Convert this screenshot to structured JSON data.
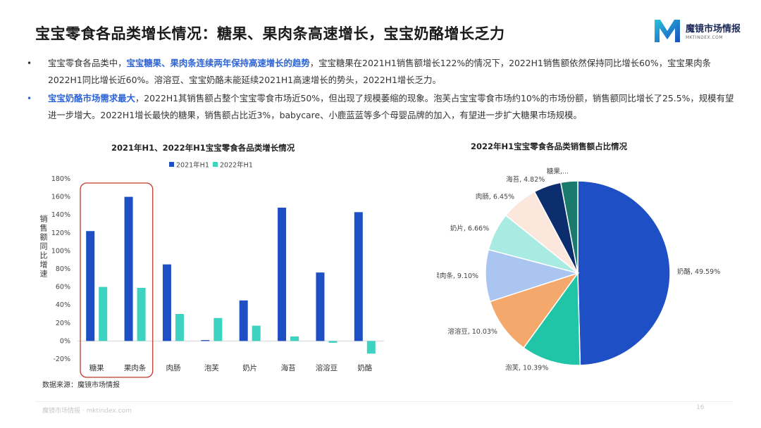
{
  "page": {
    "title": "宝宝零食各品类增长情况：糖果、果肉条高速增长，宝宝奶酪增长乏力",
    "logo": {
      "brand": "魔镜市场情报",
      "domain": "MKTINDEX.COM"
    },
    "bullets": [
      {
        "pre": "宝宝零食各品类中，",
        "highlight": "宝宝糖果、果肉条连续两年保持高速增长的趋势",
        "post": "，宝宝糖果在2021H1销售额增长122%的情况下，2022H1销售额依然保持同比增长60%，宝宝果肉条2022H1同比增长近60%。溶溶豆、宝宝奶酪未能延续2021H1高速增长的势头，2022H1增长乏力。"
      },
      {
        "pre": "",
        "highlight": "宝宝奶酪市场需求最大",
        "post": "，2022H1其销售额占整个宝宝零食市场近50%，但出现了规模萎缩的现象。泡芙占宝宝零食市场约10%的市场份额，销售额同比增长了25.5%，规模有望进一步增大。2022H1增长最快的糖果，销售额占比近3%，babycare、小鹿蓝蓝等多个母婴品牌的加入，有望进一步扩大糖果市场规模。"
      }
    ],
    "source": "数据来源：魔镜市场情报",
    "footer": "魔镜市场情报 · mktindex.com",
    "page_number": "16"
  },
  "chart_data": [
    {
      "type": "bar",
      "title": "2021年H1、2022年H1宝宝零食各品类增长情况",
      "ylabel": "销售额同比增速",
      "categories": [
        "糖果",
        "果肉条",
        "肉肠",
        "泡芙",
        "奶片",
        "海苔",
        "溶溶豆",
        "奶酪"
      ],
      "series": [
        {
          "name": "2021年H1",
          "color": "#1f4fc4",
          "values": [
            122,
            160,
            85,
            1,
            45,
            148,
            76,
            143
          ]
        },
        {
          "name": "2022年H1",
          "color": "#3ed3c0",
          "values": [
            60,
            59,
            30,
            25.5,
            17,
            5,
            -2,
            -14
          ]
        }
      ],
      "ylim": [
        -20,
        180
      ],
      "yticks": [
        "-20%",
        "0%",
        "20%",
        "40%",
        "60%",
        "80%",
        "100%",
        "120%",
        "140%",
        "160%",
        "180%"
      ],
      "legend": "top",
      "highlight_box_categories": [
        "糖果",
        "果肉条"
      ],
      "highlight_color": "#c0392b"
    },
    {
      "type": "pie",
      "title": "2022年H1宝宝零食各品类销售额占比情况",
      "slices": [
        {
          "label": "奶酪, 49.59%",
          "value": 49.59,
          "color": "#1f4fc4"
        },
        {
          "label": "泡芙, 10.39%",
          "value": 10.39,
          "color": "#20c4a6"
        },
        {
          "label": "溶溶豆, 10.03%",
          "value": 10.03,
          "color": "#f5a86c"
        },
        {
          "label": "果肉条, 9.10%",
          "value": 9.1,
          "color": "#a9c5f0"
        },
        {
          "label": "奶片, 6.66%",
          "value": 6.66,
          "color": "#a8ebe3"
        },
        {
          "label": "肉肠, 6.45%",
          "value": 6.45,
          "color": "#fbe7db"
        },
        {
          "label": "海苔, 4.82%",
          "value": 4.82,
          "color": "#0d2e6e"
        },
        {
          "label": "糖果,...",
          "value": 2.96,
          "color": "#1a7a6c"
        }
      ]
    }
  ]
}
